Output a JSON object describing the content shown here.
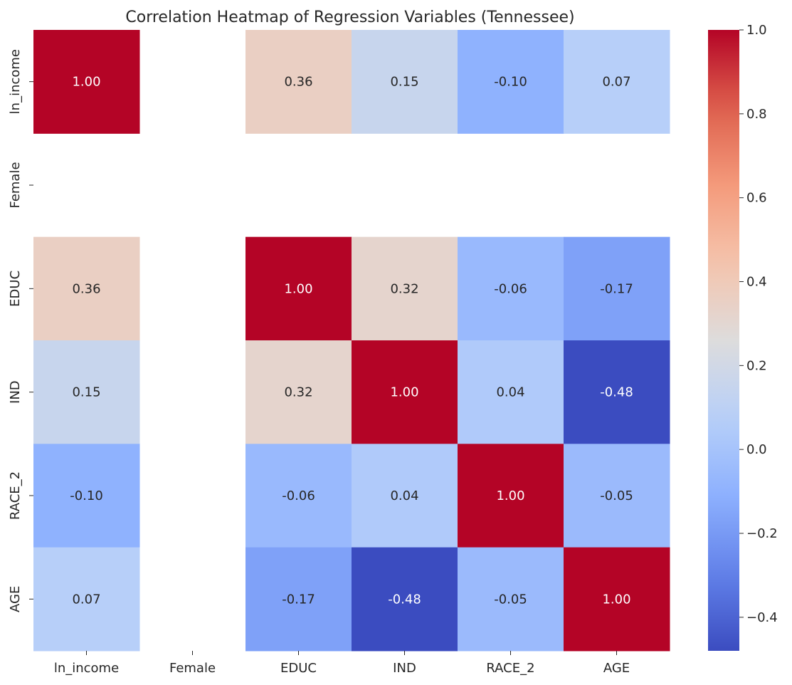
{
  "chart_data": {
    "type": "heatmap",
    "title": "Correlation Heatmap of Regression Variables (Tennessee)",
    "xlabel": "",
    "ylabel": "",
    "x_categories": [
      "ln_income",
      "Female",
      "EDUC",
      "IND",
      "RACE_2",
      "AGE"
    ],
    "y_categories": [
      "ln_income",
      "Female",
      "EDUC",
      "IND",
      "RACE_2",
      "AGE"
    ],
    "values": [
      [
        1.0,
        null,
        0.36,
        0.15,
        -0.1,
        0.07
      ],
      [
        null,
        null,
        null,
        null,
        null,
        null
      ],
      [
        0.36,
        null,
        1.0,
        0.32,
        -0.06,
        -0.17
      ],
      [
        0.15,
        null,
        0.32,
        1.0,
        0.04,
        -0.48
      ],
      [
        -0.1,
        null,
        -0.06,
        0.04,
        1.0,
        -0.05
      ],
      [
        0.07,
        null,
        -0.17,
        -0.48,
        -0.05,
        1.0
      ]
    ],
    "value_labels": [
      [
        "1.00",
        "",
        "0.36",
        "0.15",
        "-0.10",
        "0.07"
      ],
      [
        "",
        "",
        "",
        "",
        "",
        ""
      ],
      [
        "0.36",
        "",
        "1.00",
        "0.32",
        "-0.06",
        "-0.17"
      ],
      [
        "0.15",
        "",
        "0.32",
        "1.00",
        "0.04",
        "-0.48"
      ],
      [
        "-0.10",
        "",
        "-0.06",
        "0.04",
        "1.00",
        "-0.05"
      ],
      [
        "0.07",
        "",
        "-0.17",
        "-0.48",
        "-0.05",
        "1.00"
      ]
    ],
    "colormap": "coolwarm",
    "color_range": [
      -0.48,
      1.0
    ],
    "colorbar": {
      "ticks": [
        1.0,
        0.8,
        0.6,
        0.4,
        0.2,
        0.0,
        -0.2,
        -0.4
      ],
      "tick_labels": [
        "1.0",
        "0.8",
        "0.6",
        "0.4",
        "0.2",
        "0.0",
        "−0.2",
        "−0.4"
      ]
    },
    "grid": false,
    "legend": "colorbar-right"
  }
}
